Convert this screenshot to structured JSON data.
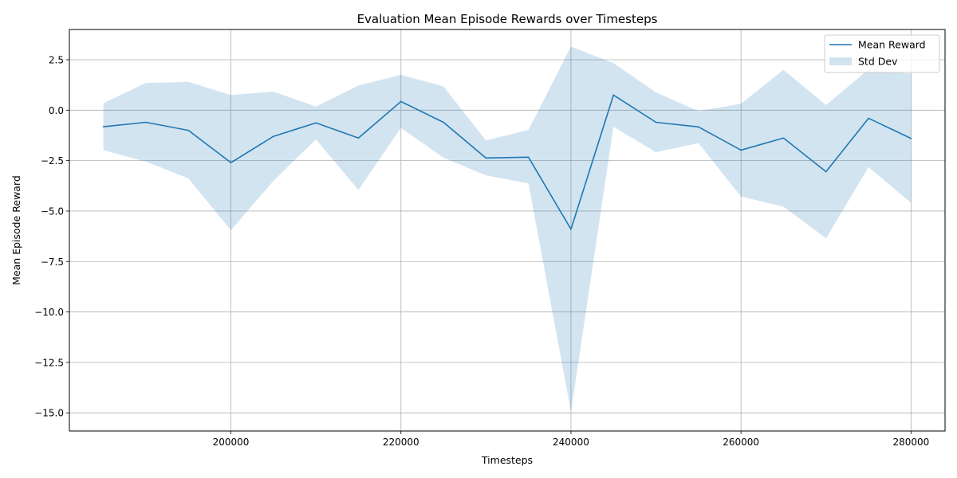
{
  "chart_data": {
    "type": "line",
    "title": "Evaluation Mean Episode Rewards over Timesteps",
    "xlabel": "Timesteps",
    "ylabel": "Mean Episode Reward",
    "xlim": [
      181000,
      284000
    ],
    "ylim": [
      -15.9,
      4.0
    ],
    "xticks": [
      200000,
      220000,
      240000,
      260000,
      280000
    ],
    "yticks": [
      -15.0,
      -12.5,
      -10.0,
      -7.5,
      -5.0,
      -2.5,
      0.0,
      2.5
    ],
    "ytick_labels": [
      "−15.0",
      "−12.5",
      "−10.0",
      "−7.5",
      "−5.0",
      "−2.5",
      "0.0",
      "2.5"
    ],
    "grid": true,
    "legend_position": "top-right",
    "x": [
      185000,
      190000,
      195000,
      200000,
      205000,
      210000,
      215000,
      220000,
      225000,
      230000,
      235000,
      240000,
      245000,
      250000,
      255000,
      260000,
      265000,
      270000,
      275000,
      280000
    ],
    "series": [
      {
        "name": "Mean Reward",
        "color": "#1f77b4",
        "values": [
          -0.82,
          -0.6,
          -1.0,
          -2.6,
          -1.3,
          -0.63,
          -1.38,
          0.43,
          -0.6,
          -2.37,
          -2.33,
          -5.9,
          0.75,
          -0.6,
          -0.83,
          -1.98,
          -1.38,
          -3.05,
          -0.4,
          -1.4
        ]
      }
    ],
    "band": {
      "name": "Std Dev",
      "color": "#1f77b4",
      "opacity": 0.2,
      "upper": [
        0.35,
        1.35,
        1.4,
        0.75,
        0.92,
        0.18,
        1.22,
        1.75,
        1.18,
        -1.5,
        -0.98,
        3.15,
        2.33,
        0.88,
        -0.05,
        0.32,
        2.0,
        0.25,
        2.02,
        1.8
      ],
      "lower": [
        -1.98,
        -2.55,
        -3.38,
        -5.95,
        -3.5,
        -1.45,
        -3.95,
        -0.88,
        -2.35,
        -3.23,
        -3.63,
        -14.95,
        -0.82,
        -2.08,
        -1.63,
        -4.28,
        -4.78,
        -6.35,
        -2.82,
        -4.6
      ]
    }
  }
}
